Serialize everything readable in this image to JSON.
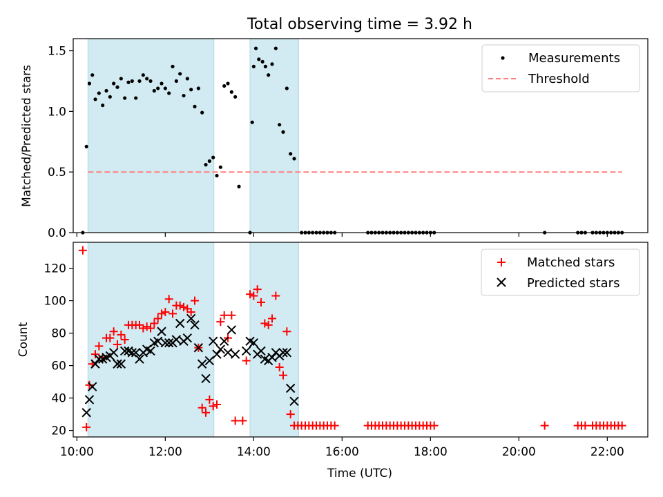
{
  "title": "Total observing time = 3.92 h",
  "xlabel": "Time (UTC)",
  "colors": {
    "band": "#add8e6",
    "threshold": "#ff7f7f",
    "matched": "#ff0000",
    "predicted": "#000000",
    "measure": "#000000"
  },
  "chart_data": [
    {
      "type": "scatter",
      "ylabel": "Matched/Predicted stars",
      "xlim": [
        "09:55",
        "22:55"
      ],
      "ylim": [
        0,
        1.6
      ],
      "yticks": [
        0,
        0.5,
        1.0,
        1.5
      ],
      "yticklabels": [
        "0.0",
        "0.5",
        "1.0",
        "1.5"
      ],
      "legend_position": "top-right",
      "shaded_intervals": [
        [
          "10:15",
          "13:06"
        ],
        [
          "13:55",
          "15:01"
        ]
      ],
      "threshold": {
        "name": "Threshold",
        "y": 0.5,
        "x_range": [
          "10:15",
          "22:20"
        ]
      },
      "series": [
        {
          "name": "Measurements",
          "points": [
            [
              "10:08",
              0.0
            ],
            [
              "10:13",
              0.71
            ],
            [
              "10:17",
              1.23
            ],
            [
              "10:21",
              1.3
            ],
            [
              "10:25",
              1.1
            ],
            [
              "10:30",
              1.15
            ],
            [
              "10:35",
              1.05
            ],
            [
              "10:40",
              1.17
            ],
            [
              "10:45",
              1.12
            ],
            [
              "10:50",
              1.23
            ],
            [
              "10:55",
              1.2
            ],
            [
              "11:00",
              1.27
            ],
            [
              "11:05",
              1.11
            ],
            [
              "11:10",
              1.24
            ],
            [
              "11:15",
              1.25
            ],
            [
              "11:20",
              1.11
            ],
            [
              "11:25",
              1.25
            ],
            [
              "11:30",
              1.3
            ],
            [
              "11:35",
              1.27
            ],
            [
              "11:40",
              1.25
            ],
            [
              "11:45",
              1.17
            ],
            [
              "11:50",
              1.19
            ],
            [
              "11:55",
              1.23
            ],
            [
              "12:00",
              1.19
            ],
            [
              "12:05",
              1.15
            ],
            [
              "12:10",
              1.37
            ],
            [
              "12:15",
              1.25
            ],
            [
              "12:20",
              1.31
            ],
            [
              "12:25",
              1.13
            ],
            [
              "12:30",
              1.27
            ],
            [
              "12:35",
              1.18
            ],
            [
              "12:40",
              1.04
            ],
            [
              "12:45",
              1.19
            ],
            [
              "12:50",
              0.99
            ],
            [
              "12:55",
              0.56
            ],
            [
              "13:00",
              0.59
            ],
            [
              "13:05",
              0.62
            ],
            [
              "13:10",
              0.47
            ],
            [
              "13:15",
              0.54
            ],
            [
              "13:20",
              1.21
            ],
            [
              "13:25",
              1.23
            ],
            [
              "13:30",
              1.16
            ],
            [
              "13:35",
              1.12
            ],
            [
              "13:40",
              0.38
            ],
            [
              "13:55",
              0.0
            ],
            [
              "13:58",
              0.91
            ],
            [
              "14:00",
              1.37
            ],
            [
              "14:03",
              1.52
            ],
            [
              "14:07",
              1.43
            ],
            [
              "14:12",
              1.41
            ],
            [
              "14:16",
              1.37
            ],
            [
              "14:20",
              1.3
            ],
            [
              "14:25",
              1.39
            ],
            [
              "14:30",
              1.52
            ],
            [
              "14:35",
              0.89
            ],
            [
              "14:40",
              0.83
            ],
            [
              "14:45",
              1.19
            ],
            [
              "14:50",
              0.65
            ],
            [
              "14:55",
              0.61
            ],
            [
              "15:05",
              0.0
            ],
            [
              "15:10",
              0.0
            ],
            [
              "15:15",
              0.0
            ],
            [
              "15:20",
              0.0
            ],
            [
              "15:25",
              0.0
            ],
            [
              "15:30",
              0.0
            ],
            [
              "15:35",
              0.0
            ],
            [
              "15:40",
              0.0
            ],
            [
              "15:45",
              0.0
            ],
            [
              "15:50",
              0.0
            ],
            [
              "16:35",
              0.0
            ],
            [
              "16:40",
              0.0
            ],
            [
              "16:45",
              0.0
            ],
            [
              "16:50",
              0.0
            ],
            [
              "16:55",
              0.0
            ],
            [
              "17:00",
              0.0
            ],
            [
              "17:05",
              0.0
            ],
            [
              "17:10",
              0.0
            ],
            [
              "17:15",
              0.0
            ],
            [
              "17:20",
              0.0
            ],
            [
              "17:25",
              0.0
            ],
            [
              "17:30",
              0.0
            ],
            [
              "17:35",
              0.0
            ],
            [
              "17:40",
              0.0
            ],
            [
              "17:45",
              0.0
            ],
            [
              "17:50",
              0.0
            ],
            [
              "17:55",
              0.0
            ],
            [
              "18:00",
              0.0
            ],
            [
              "18:05",
              0.0
            ],
            [
              "20:35",
              0.0
            ],
            [
              "21:20",
              0.0
            ],
            [
              "21:25",
              0.0
            ],
            [
              "21:30",
              0.0
            ],
            [
              "21:40",
              0.0
            ],
            [
              "21:45",
              0.0
            ],
            [
              "21:50",
              0.0
            ],
            [
              "21:55",
              0.0
            ],
            [
              "22:00",
              0.0
            ],
            [
              "22:05",
              0.0
            ],
            [
              "22:10",
              0.0
            ],
            [
              "22:15",
              0.0
            ],
            [
              "22:20",
              0.0
            ]
          ]
        }
      ]
    },
    {
      "type": "scatter",
      "ylabel": "Count",
      "xlim": [
        "09:55",
        "22:55"
      ],
      "ylim": [
        16,
        136
      ],
      "yticks": [
        20,
        40,
        60,
        80,
        100,
        120
      ],
      "xticks": [
        "10:00",
        "12:00",
        "14:00",
        "16:00",
        "18:00",
        "20:00",
        "22:00"
      ],
      "legend_position": "top-right",
      "shaded_intervals": [
        [
          "10:15",
          "13:06"
        ],
        [
          "13:55",
          "15:01"
        ]
      ],
      "series": [
        {
          "name": "Matched stars",
          "points": [
            [
              "10:08",
              131
            ],
            [
              "10:13",
              22
            ],
            [
              "10:17",
              48
            ],
            [
              "10:21",
              61
            ],
            [
              "10:25",
              67
            ],
            [
              "10:30",
              72
            ],
            [
              "10:35",
              65
            ],
            [
              "10:40",
              77
            ],
            [
              "10:45",
              77
            ],
            [
              "10:50",
              81
            ],
            [
              "10:55",
              73
            ],
            [
              "11:00",
              79
            ],
            [
              "11:05",
              76
            ],
            [
              "11:10",
              85
            ],
            [
              "11:15",
              85
            ],
            [
              "11:20",
              85
            ],
            [
              "11:25",
              85
            ],
            [
              "11:30",
              83
            ],
            [
              "11:35",
              84
            ],
            [
              "11:40",
              83
            ],
            [
              "11:45",
              86
            ],
            [
              "11:50",
              89
            ],
            [
              "11:55",
              92
            ],
            [
              "12:00",
              93
            ],
            [
              "12:05",
              101
            ],
            [
              "12:10",
              92
            ],
            [
              "12:15",
              97
            ],
            [
              "12:20",
              97
            ],
            [
              "12:25",
              96
            ],
            [
              "12:30",
              95
            ],
            [
              "12:35",
              93
            ],
            [
              "12:40",
              100
            ],
            [
              "12:45",
              71
            ],
            [
              "12:50",
              34
            ],
            [
              "12:55",
              31
            ],
            [
              "13:00",
              39
            ],
            [
              "13:05",
              35
            ],
            [
              "13:10",
              36
            ],
            [
              "13:15",
              87
            ],
            [
              "13:20",
              91
            ],
            [
              "13:25",
              77
            ],
            [
              "13:30",
              91
            ],
            [
              "13:35",
              26
            ],
            [
              "13:45",
              26
            ],
            [
              "13:50",
              63
            ],
            [
              "13:55",
              104
            ],
            [
              "14:00",
              103
            ],
            [
              "14:05",
              107
            ],
            [
              "14:10",
              99
            ],
            [
              "14:15",
              86
            ],
            [
              "14:20",
              85
            ],
            [
              "14:25",
              89
            ],
            [
              "14:30",
              103
            ],
            [
              "14:35",
              59
            ],
            [
              "14:40",
              54
            ],
            [
              "14:45",
              81
            ],
            [
              "14:50",
              30
            ],
            [
              "14:55",
              23
            ],
            [
              "15:00",
              23
            ],
            [
              "15:05",
              23
            ],
            [
              "15:10",
              23
            ],
            [
              "15:15",
              23
            ],
            [
              "15:20",
              23
            ],
            [
              "15:25",
              23
            ],
            [
              "15:30",
              23
            ],
            [
              "15:35",
              23
            ],
            [
              "15:40",
              23
            ],
            [
              "15:45",
              23
            ],
            [
              "15:50",
              23
            ],
            [
              "16:35",
              23
            ],
            [
              "16:40",
              23
            ],
            [
              "16:45",
              23
            ],
            [
              "16:50",
              23
            ],
            [
              "16:55",
              23
            ],
            [
              "17:00",
              23
            ],
            [
              "17:05",
              23
            ],
            [
              "17:10",
              23
            ],
            [
              "17:15",
              23
            ],
            [
              "17:20",
              23
            ],
            [
              "17:25",
              23
            ],
            [
              "17:30",
              23
            ],
            [
              "17:35",
              23
            ],
            [
              "17:40",
              23
            ],
            [
              "17:45",
              23
            ],
            [
              "17:50",
              23
            ],
            [
              "17:55",
              23
            ],
            [
              "18:00",
              23
            ],
            [
              "18:05",
              23
            ],
            [
              "20:35",
              23
            ],
            [
              "21:20",
              23
            ],
            [
              "21:25",
              23
            ],
            [
              "21:30",
              23
            ],
            [
              "21:40",
              23
            ],
            [
              "21:45",
              23
            ],
            [
              "21:50",
              23
            ],
            [
              "21:55",
              23
            ],
            [
              "22:00",
              23
            ],
            [
              "22:05",
              23
            ],
            [
              "22:10",
              23
            ],
            [
              "22:15",
              23
            ],
            [
              "22:20",
              23
            ]
          ]
        },
        {
          "name": "Predicted stars",
          "points": [
            [
              "10:13",
              31
            ],
            [
              "10:17",
              39
            ],
            [
              "10:21",
              47
            ],
            [
              "10:25",
              61
            ],
            [
              "10:30",
              64
            ],
            [
              "10:35",
              64
            ],
            [
              "10:40",
              65
            ],
            [
              "10:45",
              66
            ],
            [
              "10:50",
              68
            ],
            [
              "10:55",
              61
            ],
            [
              "11:00",
              61
            ],
            [
              "11:05",
              69
            ],
            [
              "11:10",
              69
            ],
            [
              "11:15",
              68
            ],
            [
              "11:20",
              68
            ],
            [
              "11:25",
              64
            ],
            [
              "11:30",
              68
            ],
            [
              "11:35",
              70
            ],
            [
              "11:40",
              69
            ],
            [
              "11:45",
              74
            ],
            [
              "11:50",
              75
            ],
            [
              "11:55",
              81
            ],
            [
              "12:00",
              74
            ],
            [
              "12:05",
              74
            ],
            [
              "12:10",
              74
            ],
            [
              "12:15",
              76
            ],
            [
              "12:20",
              86
            ],
            [
              "12:25",
              75
            ],
            [
              "12:30",
              77
            ],
            [
              "12:35",
              89
            ],
            [
              "12:40",
              85
            ],
            [
              "12:45",
              71
            ],
            [
              "12:50",
              61
            ],
            [
              "12:55",
              52
            ],
            [
              "13:00",
              63
            ],
            [
              "13:05",
              75
            ],
            [
              "13:10",
              67
            ],
            [
              "13:15",
              70
            ],
            [
              "13:20",
              75
            ],
            [
              "13:25",
              68
            ],
            [
              "13:30",
              82
            ],
            [
              "13:35",
              67
            ],
            [
              "13:50",
              69
            ],
            [
              "13:55",
              75
            ],
            [
              "14:00",
              74
            ],
            [
              "14:05",
              67
            ],
            [
              "14:10",
              69
            ],
            [
              "14:15",
              64
            ],
            [
              "14:20",
              63
            ],
            [
              "14:25",
              65
            ],
            [
              "14:30",
              68
            ],
            [
              "14:35",
              66
            ],
            [
              "14:40",
              68
            ],
            [
              "14:45",
              68
            ],
            [
              "14:50",
              46
            ],
            [
              "14:55",
              38
            ]
          ]
        }
      ]
    }
  ]
}
